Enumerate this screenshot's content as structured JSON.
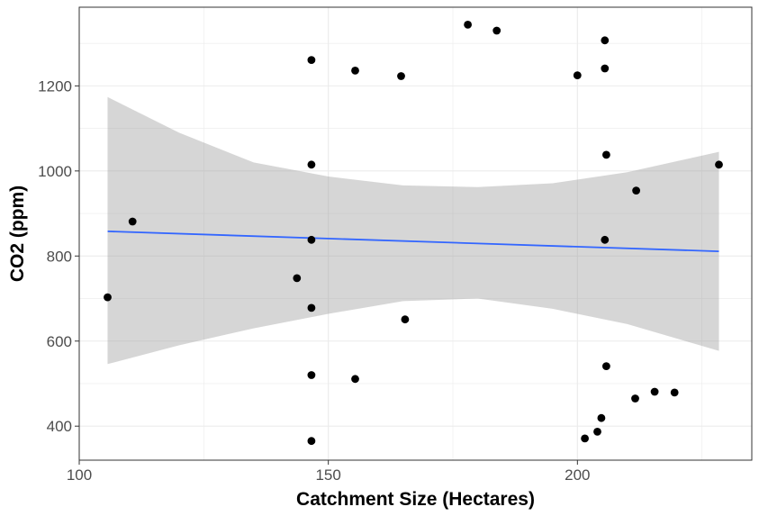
{
  "chart_data": {
    "type": "scatter",
    "title": "",
    "xlabel": "Catchment Size (Hectares)",
    "ylabel": "CO2 (ppm)",
    "xlim": [
      100,
      235
    ],
    "ylim": [
      320,
      1385
    ],
    "xticks": [
      100,
      150,
      200
    ],
    "yticks": [
      400,
      600,
      800,
      1000,
      1200
    ],
    "grid": true,
    "colors": {
      "points": "#000000",
      "trend_line": "#3366FF",
      "confidence_band": "#999999",
      "grid": "#ebebeb",
      "panel_border": "#333333"
    },
    "points": [
      {
        "x": 105.7,
        "y": 703
      },
      {
        "x": 110.7,
        "y": 881
      },
      {
        "x": 143.7,
        "y": 748
      },
      {
        "x": 146.6,
        "y": 1261
      },
      {
        "x": 146.6,
        "y": 1015
      },
      {
        "x": 146.6,
        "y": 838
      },
      {
        "x": 146.6,
        "y": 678
      },
      {
        "x": 146.6,
        "y": 520
      },
      {
        "x": 146.6,
        "y": 365
      },
      {
        "x": 155.4,
        "y": 1236
      },
      {
        "x": 155.4,
        "y": 511
      },
      {
        "x": 164.6,
        "y": 1223
      },
      {
        "x": 165.4,
        "y": 651
      },
      {
        "x": 178.0,
        "y": 1344
      },
      {
        "x": 183.8,
        "y": 1330
      },
      {
        "x": 200.0,
        "y": 1225
      },
      {
        "x": 201.5,
        "y": 371
      },
      {
        "x": 204.0,
        "y": 387
      },
      {
        "x": 204.8,
        "y": 419
      },
      {
        "x": 205.5,
        "y": 1307
      },
      {
        "x": 205.5,
        "y": 1241
      },
      {
        "x": 205.8,
        "y": 1038
      },
      {
        "x": 205.5,
        "y": 838
      },
      {
        "x": 205.8,
        "y": 541
      },
      {
        "x": 211.6,
        "y": 465
      },
      {
        "x": 211.8,
        "y": 954
      },
      {
        "x": 215.5,
        "y": 481
      },
      {
        "x": 219.5,
        "y": 479
      },
      {
        "x": 228.4,
        "y": 1015
      }
    ],
    "trend_line": {
      "x": [
        105.7,
        228.4
      ],
      "y": [
        858,
        811
      ]
    },
    "confidence_band": [
      {
        "x": 105.7,
        "lower": 546,
        "upper": 1174
      },
      {
        "x": 120,
        "lower": 590,
        "upper": 1090
      },
      {
        "x": 135,
        "lower": 630,
        "upper": 1020
      },
      {
        "x": 150,
        "lower": 664,
        "upper": 987
      },
      {
        "x": 165,
        "lower": 694,
        "upper": 966
      },
      {
        "x": 180,
        "lower": 700,
        "upper": 962
      },
      {
        "x": 195,
        "lower": 676,
        "upper": 971
      },
      {
        "x": 210,
        "lower": 640,
        "upper": 997
      },
      {
        "x": 228.4,
        "lower": 577,
        "upper": 1045
      }
    ]
  }
}
